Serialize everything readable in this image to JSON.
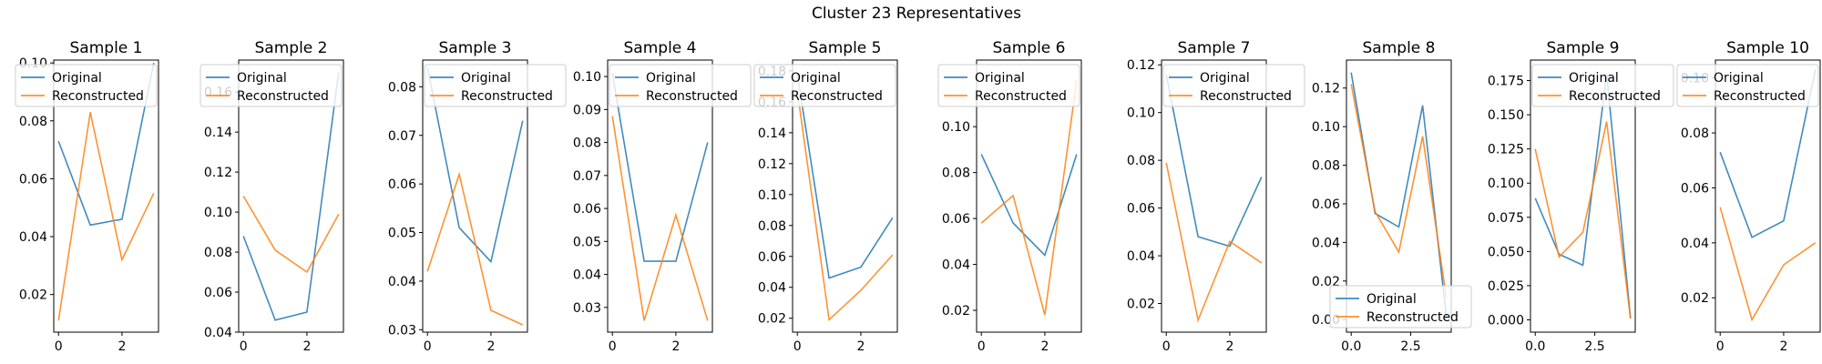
{
  "figure_title": "Cluster 23 Representatives",
  "colors": {
    "original": "#1f77b4",
    "reconstructed": "#ff7f0e"
  },
  "chart_data": [
    {
      "type": "line",
      "title": "Sample 1",
      "x": [
        0,
        1,
        2,
        3
      ],
      "xlim": [
        -0.15,
        3.15
      ],
      "ylim": [
        0.007,
        0.101
      ],
      "xticks": [
        0,
        2
      ],
      "xtick_labels": [
        "0",
        "2"
      ],
      "yticks": [
        0.02,
        0.04,
        0.06,
        0.08,
        0.1
      ],
      "ytick_labels": [
        "0.02",
        "0.04",
        "0.06",
        "0.08",
        "0.10"
      ],
      "legend_loc": "upper-left",
      "series": [
        {
          "name": "Original",
          "values": [
            0.073,
            0.044,
            0.046,
            0.1
          ]
        },
        {
          "name": "Reconstructed",
          "values": [
            0.011,
            0.083,
            0.032,
            0.055
          ]
        }
      ]
    },
    {
      "type": "line",
      "title": "Sample 2",
      "x": [
        0,
        1,
        2,
        3
      ],
      "xlim": [
        -0.15,
        3.15
      ],
      "ylim": [
        0.04,
        0.176
      ],
      "xticks": [
        0,
        2
      ],
      "xtick_labels": [
        "0",
        "2"
      ],
      "yticks": [
        0.04,
        0.06,
        0.08,
        0.1,
        0.12,
        0.14,
        0.16
      ],
      "ytick_labels": [
        "0.04",
        "0.06",
        "0.08",
        "0.10",
        "0.12",
        "0.14",
        "0.16"
      ],
      "legend_loc": "upper-left",
      "series": [
        {
          "name": "Original",
          "values": [
            0.088,
            0.046,
            0.05,
            0.17
          ]
        },
        {
          "name": "Reconstructed",
          "values": [
            0.108,
            0.081,
            0.07,
            0.099
          ]
        }
      ]
    },
    {
      "type": "line",
      "title": "Sample 3",
      "x": [
        0,
        1,
        2,
        3
      ],
      "xlim": [
        -0.15,
        3.15
      ],
      "ylim": [
        0.0295,
        0.0855
      ],
      "xticks": [
        0,
        2
      ],
      "xtick_labels": [
        "0",
        "2"
      ],
      "yticks": [
        0.03,
        0.04,
        0.05,
        0.06,
        0.07,
        0.08
      ],
      "ytick_labels": [
        "0.03",
        "0.04",
        "0.05",
        "0.06",
        "0.07",
        "0.08"
      ],
      "legend_loc": "upper-right",
      "series": [
        {
          "name": "Original",
          "values": [
            0.084,
            0.051,
            0.044,
            0.073
          ]
        },
        {
          "name": "Reconstructed",
          "values": [
            0.042,
            0.062,
            0.034,
            0.031
          ]
        }
      ]
    },
    {
      "type": "line",
      "title": "Sample 4",
      "x": [
        0,
        1,
        2,
        3
      ],
      "xlim": [
        -0.15,
        3.15
      ],
      "ylim": [
        0.0225,
        0.105
      ],
      "xticks": [
        0,
        2
      ],
      "xtick_labels": [
        "0",
        "2"
      ],
      "yticks": [
        0.03,
        0.04,
        0.05,
        0.06,
        0.07,
        0.08,
        0.09,
        0.1
      ],
      "ytick_labels": [
        "0.03",
        "0.04",
        "0.05",
        "0.06",
        "0.07",
        "0.08",
        "0.09",
        "0.10"
      ],
      "legend_loc": "upper-right",
      "series": [
        {
          "name": "Original",
          "values": [
            0.101,
            0.044,
            0.044,
            0.08
          ]
        },
        {
          "name": "Reconstructed",
          "values": [
            0.088,
            0.026,
            0.058,
            0.026
          ]
        }
      ]
    },
    {
      "type": "line",
      "title": "Sample 5",
      "x": [
        0,
        1,
        2,
        3
      ],
      "xlim": [
        -0.15,
        3.15
      ],
      "ylim": [
        0.011,
        0.187
      ],
      "xticks": [
        0,
        2
      ],
      "xtick_labels": [
        "0",
        "2"
      ],
      "yticks": [
        0.02,
        0.04,
        0.06,
        0.08,
        0.1,
        0.12,
        0.14,
        0.16,
        0.18
      ],
      "ytick_labels": [
        "0.02",
        "0.04",
        "0.06",
        "0.08",
        "0.10",
        "0.12",
        "0.14",
        "0.16",
        "0.18"
      ],
      "legend_loc": "upper-left",
      "series": [
        {
          "name": "Original",
          "values": [
            0.178,
            0.046,
            0.053,
            0.085
          ]
        },
        {
          "name": "Reconstructed",
          "values": [
            0.167,
            0.019,
            0.038,
            0.061
          ]
        }
      ]
    },
    {
      "type": "line",
      "title": "Sample 6",
      "x": [
        0,
        1,
        2,
        3
      ],
      "xlim": [
        -0.15,
        3.15
      ],
      "ylim": [
        0.0105,
        0.129
      ],
      "xticks": [
        0,
        2
      ],
      "xtick_labels": [
        "0",
        "2"
      ],
      "yticks": [
        0.02,
        0.04,
        0.06,
        0.08,
        0.1
      ],
      "ytick_labels": [
        "0.02",
        "0.04",
        "0.06",
        "0.08",
        "0.10"
      ],
      "legend_loc": "upper-left",
      "series": [
        {
          "name": "Original",
          "values": [
            0.088,
            0.058,
            0.044,
            0.088
          ]
        },
        {
          "name": "Reconstructed",
          "values": [
            0.058,
            0.07,
            0.018,
            0.12
          ]
        }
      ]
    },
    {
      "type": "line",
      "title": "Sample 7",
      "x": [
        0,
        1,
        2,
        3
      ],
      "xlim": [
        -0.15,
        3.15
      ],
      "ylim": [
        0.008,
        0.122
      ],
      "xticks": [
        0,
        2
      ],
      "xtick_labels": [
        "0",
        "2"
      ],
      "yticks": [
        0.02,
        0.04,
        0.06,
        0.08,
        0.1,
        0.12
      ],
      "ytick_labels": [
        "0.02",
        "0.04",
        "0.06",
        "0.08",
        "0.10",
        "0.12"
      ],
      "legend_loc": "upper-right",
      "series": [
        {
          "name": "Original",
          "values": [
            0.116,
            0.048,
            0.044,
            0.073
          ]
        },
        {
          "name": "Reconstructed",
          "values": [
            0.079,
            0.013,
            0.046,
            0.037
          ]
        }
      ]
    },
    {
      "type": "line",
      "title": "Sample 8",
      "x": [
        0,
        1,
        2,
        3,
        4
      ],
      "xlim": [
        -0.2,
        4.2
      ],
      "ylim": [
        -0.0065,
        0.1345
      ],
      "xticks": [
        0,
        2.5
      ],
      "xtick_labels": [
        "0.0",
        "2.5"
      ],
      "yticks": [
        0.0,
        0.02,
        0.04,
        0.06,
        0.08,
        0.1,
        0.12
      ],
      "ytick_labels": [
        "0.00",
        "0.02",
        "0.04",
        "0.06",
        "0.08",
        "0.10",
        "0.12"
      ],
      "legend_loc": "lower-left",
      "series": [
        {
          "name": "Original",
          "values": [
            0.128,
            0.055,
            0.048,
            0.111,
            0.001
          ]
        },
        {
          "name": "Reconstructed",
          "values": [
            0.122,
            0.056,
            0.035,
            0.095,
            0.011
          ]
        }
      ]
    },
    {
      "type": "line",
      "title": "Sample 9",
      "x": [
        0,
        1,
        2,
        3,
        4
      ],
      "xlim": [
        -0.2,
        4.2
      ],
      "ylim": [
        -0.009,
        0.19
      ],
      "xticks": [
        0,
        2.5
      ],
      "xtick_labels": [
        "0.0",
        "2.5"
      ],
      "yticks": [
        0.0,
        0.025,
        0.05,
        0.075,
        0.1,
        0.125,
        0.15,
        0.175
      ],
      "ytick_labels": [
        "0.000",
        "0.025",
        "0.050",
        "0.075",
        "0.100",
        "0.125",
        "0.150",
        "0.175"
      ],
      "legend_loc": "upper-right",
      "series": [
        {
          "name": "Original",
          "values": [
            0.089,
            0.048,
            0.04,
            0.18,
            0.001
          ]
        },
        {
          "name": "Reconstructed",
          "values": [
            0.125,
            0.046,
            0.064,
            0.145,
            0.001
          ]
        }
      ]
    },
    {
      "type": "line",
      "title": "Sample 10",
      "x": [
        0,
        1,
        2,
        3
      ],
      "xlim": [
        -0.15,
        3.15
      ],
      "ylim": [
        0.0075,
        0.1065
      ],
      "xticks": [
        0,
        2
      ],
      "xtick_labels": [
        "0",
        "2"
      ],
      "yticks": [
        0.02,
        0.04,
        0.06,
        0.08,
        0.1
      ],
      "ytick_labels": [
        "0.02",
        "0.04",
        "0.06",
        "0.08",
        "0.10"
      ],
      "legend_loc": "upper-left",
      "series": [
        {
          "name": "Original",
          "values": [
            0.073,
            0.042,
            0.048,
            0.103
          ]
        },
        {
          "name": "Reconstructed",
          "values": [
            0.053,
            0.012,
            0.032,
            0.04
          ]
        }
      ]
    }
  ]
}
